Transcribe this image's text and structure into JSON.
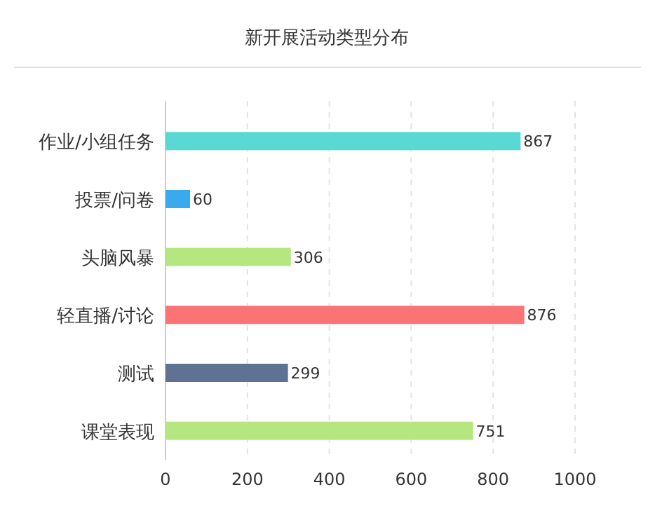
{
  "chart_data": {
    "type": "bar",
    "orientation": "horizontal",
    "title": "新开展活动类型分布",
    "categories": [
      "作业/小组任务",
      "投票/问卷",
      "头脑风暴",
      "轻直播/讨论",
      "测试",
      "课堂表现"
    ],
    "values": [
      867,
      60,
      306,
      876,
      299,
      751
    ],
    "colors": [
      "#5ad8d4",
      "#3ba9ee",
      "#b5e67f",
      "#fb7475",
      "#5e7394",
      "#b5e67f"
    ],
    "xlim": [
      0,
      1000
    ],
    "xticks": [
      0,
      200,
      400,
      600,
      800,
      1000
    ],
    "grid": "x",
    "data_labels": true
  }
}
